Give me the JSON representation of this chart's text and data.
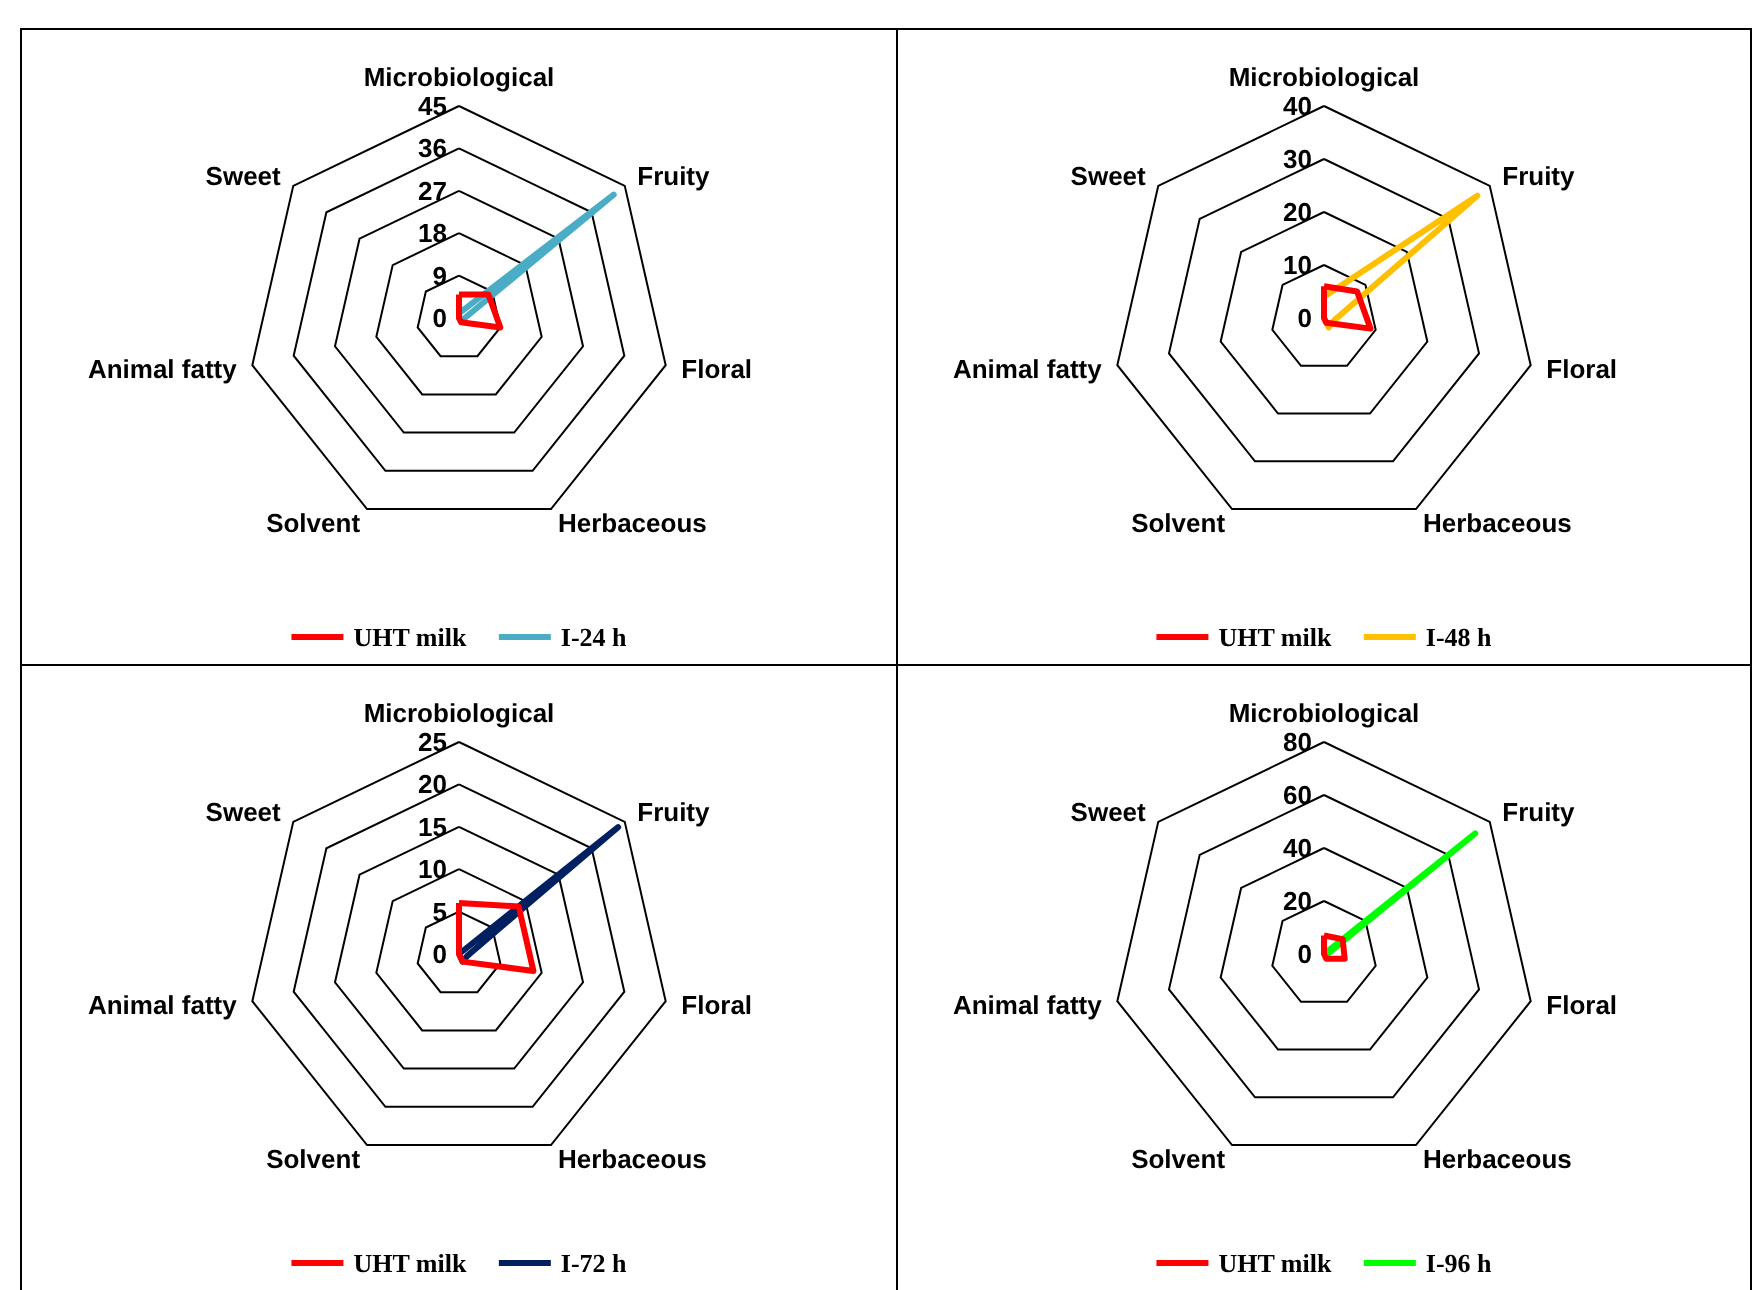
{
  "chart_data": [
    {
      "type": "radar",
      "categories": [
        "Microbiological",
        "Fruity",
        "Floral",
        "Herbaceous",
        "Solvent",
        "Animal fatty",
        "Sweet"
      ],
      "ylim": [
        0,
        45
      ],
      "yticks": [
        0,
        9,
        18,
        27,
        36,
        45
      ],
      "legend": "bottom",
      "marker": "none",
      "series": [
        {
          "name": "UHT milk",
          "color": "#ff0000",
          "values": [
            5,
            8,
            9,
            1,
            0,
            0,
            0
          ]
        },
        {
          "name": "I-24 h",
          "color": "#4bacc6",
          "values": [
            1,
            42,
            1,
            0,
            0,
            0,
            0
          ]
        }
      ]
    },
    {
      "type": "radar",
      "categories": [
        "Microbiological",
        "Fruity",
        "Floral",
        "Herbaceous",
        "Solvent",
        "Animal fatty",
        "Sweet"
      ],
      "ylim": [
        0,
        40
      ],
      "yticks": [
        0,
        10,
        20,
        30,
        40
      ],
      "legend": "bottom",
      "marker": "none",
      "series": [
        {
          "name": "UHT milk",
          "color": "#ff0000",
          "values": [
            6,
            8,
            9,
            1,
            0,
            0,
            0
          ]
        },
        {
          "name": "I-48 h",
          "color": "#ffc000",
          "values": [
            4,
            37,
            2,
            2,
            0,
            0,
            0
          ]
        }
      ]
    },
    {
      "type": "radar",
      "categories": [
        "Microbiological",
        "Fruity",
        "Floral",
        "Herbaceous",
        "Solvent",
        "Animal fatty",
        "Sweet"
      ],
      "ylim": [
        0,
        25
      ],
      "yticks": [
        0,
        5,
        10,
        15,
        20,
        25
      ],
      "legend": "bottom",
      "marker": "none",
      "series": [
        {
          "name": "UHT milk",
          "color": "#ff0000",
          "values": [
            6,
            9,
            9,
            1,
            0,
            0,
            0
          ]
        },
        {
          "name": "I-72 h",
          "color": "#002060",
          "values": [
            0,
            24,
            1,
            1,
            0,
            0,
            0
          ]
        }
      ]
    },
    {
      "type": "radar",
      "categories": [
        "Microbiological",
        "Fruity",
        "Floral",
        "Herbaceous",
        "Solvent",
        "Animal fatty",
        "Sweet"
      ],
      "ylim": [
        0,
        80
      ],
      "yticks": [
        0,
        20,
        40,
        60,
        80
      ],
      "legend": "bottom",
      "marker": "none",
      "series": [
        {
          "name": "UHT milk",
          "color": "#ff0000",
          "values": [
            7,
            9,
            8,
            2,
            0,
            0,
            0
          ]
        },
        {
          "name": "I-96 h",
          "color": "#00ff00",
          "values": [
            0,
            73,
            1,
            0,
            0,
            0,
            0
          ]
        }
      ]
    }
  ]
}
